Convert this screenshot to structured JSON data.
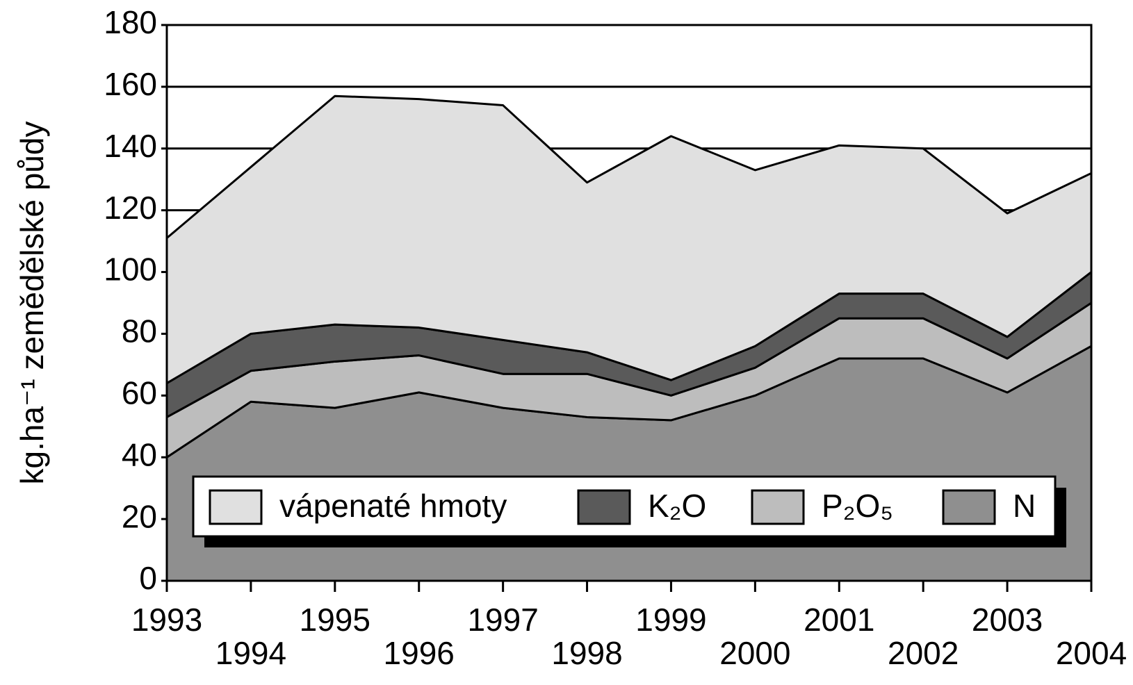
{
  "chart_data": {
    "type": "stacked_area",
    "y_label": "kg.ha⁻¹ zemědělské půdy",
    "x": [
      1993,
      1994,
      1995,
      1996,
      1997,
      1998,
      1999,
      2000,
      2001,
      2002,
      2003,
      2004
    ],
    "xlim": [
      1993,
      2004
    ],
    "ylim": [
      0,
      180
    ],
    "yticks": [
      0,
      20,
      40,
      60,
      80,
      100,
      120,
      140,
      160,
      180
    ],
    "grid": true,
    "legend_loc": "lower center",
    "series": [
      {
        "name": "vápenaté hmoty",
        "color": "#e0e0e0",
        "values": [
          47,
          54,
          74,
          74,
          76,
          55,
          79,
          57,
          48,
          47,
          40,
          32
        ]
      },
      {
        "name": "K₂O",
        "color": "#5a5a5a",
        "values": [
          11,
          12,
          12,
          9,
          11,
          7,
          5,
          7,
          8,
          8,
          7,
          10
        ]
      },
      {
        "name": "P₂O₅",
        "color": "#bdbdbd",
        "values": [
          13,
          10,
          15,
          12,
          11,
          14,
          8,
          9,
          13,
          13,
          11,
          14
        ]
      },
      {
        "name": "N",
        "color": "#8f8f8f",
        "values": [
          40,
          58,
          56,
          61,
          56,
          53,
          52,
          60,
          72,
          72,
          61,
          76
        ]
      }
    ]
  }
}
